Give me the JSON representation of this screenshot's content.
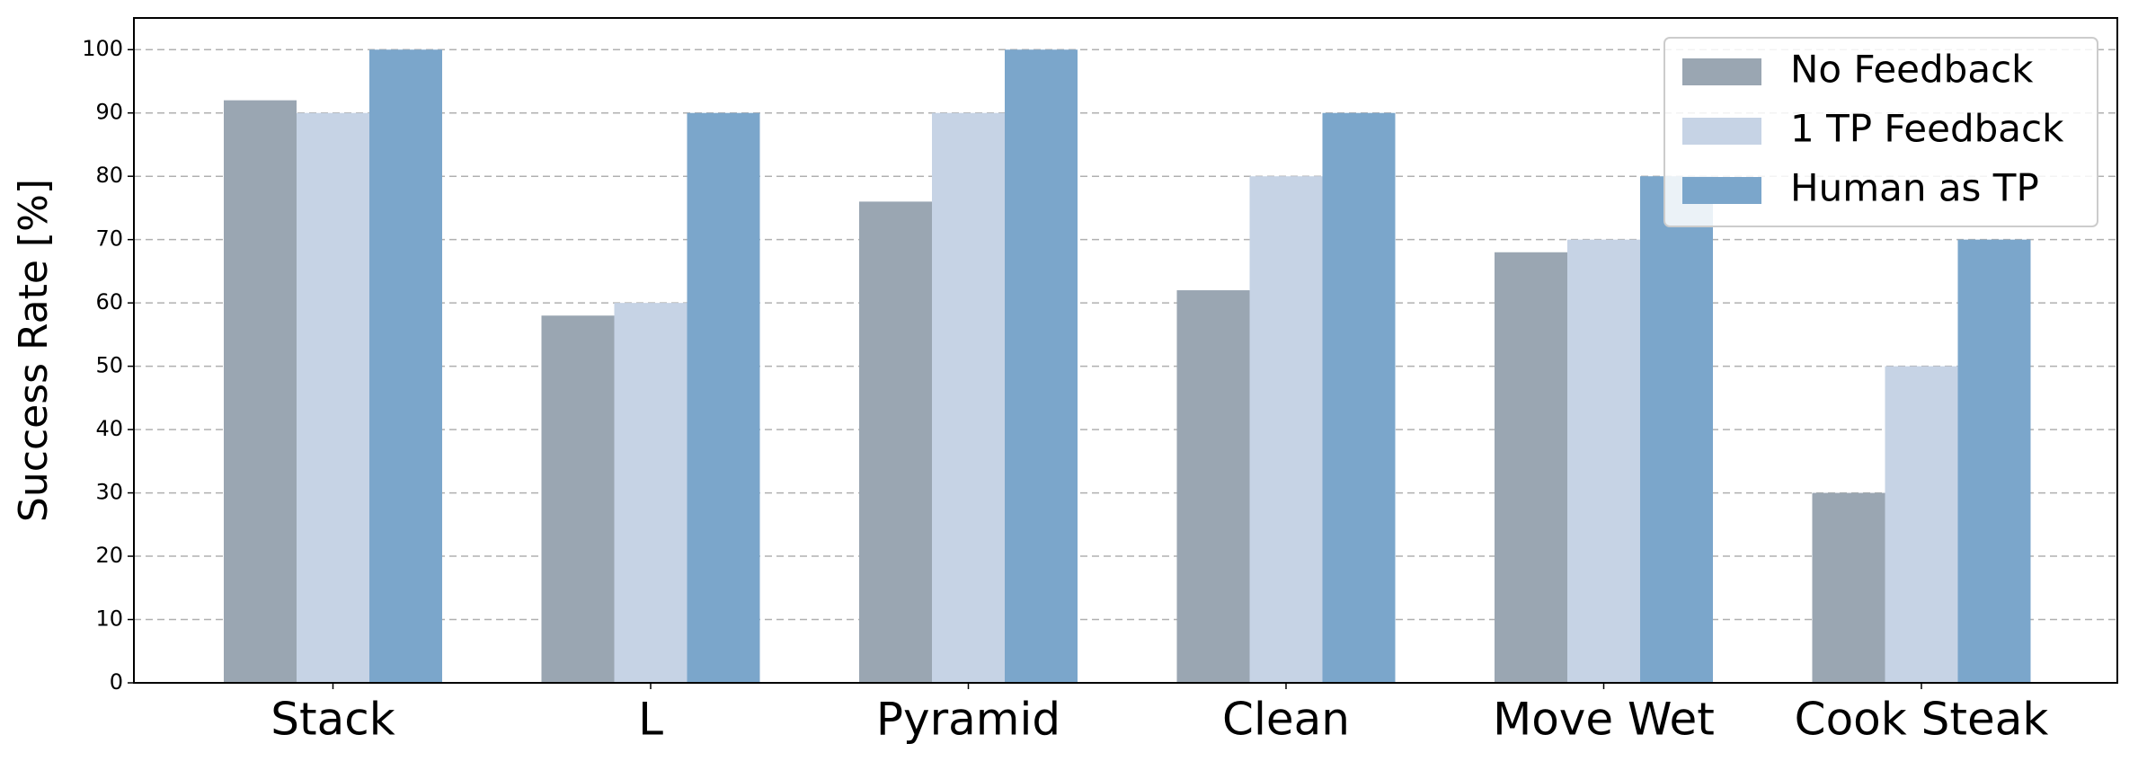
{
  "chart_data": {
    "type": "bar",
    "y_label": "Success Rate [%]",
    "categories": [
      "Stack",
      "L",
      "Pyramid",
      "Clean",
      "Move Wet",
      "Cook Steak"
    ],
    "series": [
      {
        "name": "No Feedback",
        "color": "#9aa6b2",
        "values": [
          92,
          58,
          76,
          62,
          68,
          30
        ]
      },
      {
        "name": "1 TP Feedback",
        "color": "#c6d3e5",
        "values": [
          90,
          60,
          90,
          80,
          70,
          50
        ]
      },
      {
        "name": "Human as TP",
        "color": "#7ba6cb",
        "values": [
          100,
          90,
          100,
          90,
          80,
          70
        ]
      }
    ],
    "ylim": [
      0,
      105
    ],
    "yticks": [
      0,
      10,
      20,
      30,
      40,
      50,
      60,
      70,
      80,
      90,
      100
    ],
    "grid": true,
    "legend": "upper right"
  }
}
